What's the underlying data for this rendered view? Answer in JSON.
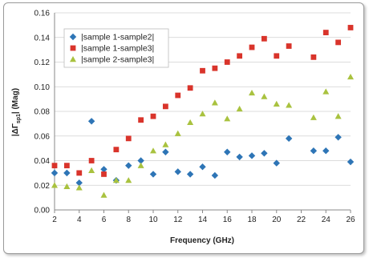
{
  "chart_data": {
    "type": "scatter",
    "xlabel": "Frequency (GHz)",
    "ylabel_parts": {
      "prefix": "|ΔΓ",
      "sub": "sp1",
      "suffix": "| (Mag)"
    },
    "xlim": [
      2,
      26
    ],
    "ylim": [
      0,
      0.16
    ],
    "x_ticks": [
      2,
      4,
      6,
      8,
      10,
      12,
      14,
      16,
      18,
      20,
      22,
      24,
      26
    ],
    "y_ticks": [
      "0.00",
      "0.02",
      "0.04",
      "0.06",
      "0.08",
      "0.10",
      "0.12",
      "0.14",
      "0.16"
    ],
    "grid": "horizontal",
    "legend_position": "top-left",
    "series": [
      {
        "name": "|sample 1-sample2|",
        "marker": "diamond",
        "color": "#2e75b6",
        "points": [
          [
            2,
            0.03
          ],
          [
            3,
            0.03
          ],
          [
            4,
            0.022
          ],
          [
            5,
            0.072
          ],
          [
            6,
            0.033
          ],
          [
            7,
            0.024
          ],
          [
            8,
            0.036
          ],
          [
            9,
            0.04
          ],
          [
            10,
            0.029
          ],
          [
            11,
            0.047
          ],
          [
            12,
            0.031
          ],
          [
            13,
            0.029
          ],
          [
            14,
            0.035
          ],
          [
            15,
            0.028
          ],
          [
            16,
            0.047
          ],
          [
            17,
            0.043
          ],
          [
            18,
            0.044
          ],
          [
            19,
            0.046
          ],
          [
            20,
            0.038
          ],
          [
            21,
            0.058
          ],
          [
            23,
            0.048
          ],
          [
            24,
            0.048
          ],
          [
            25,
            0.059
          ],
          [
            26,
            0.039
          ]
        ]
      },
      {
        "name": "|sample 1-sample3|",
        "marker": "square",
        "color": "#d9342b",
        "points": [
          [
            2,
            0.036
          ],
          [
            3,
            0.036
          ],
          [
            4,
            0.03
          ],
          [
            5,
            0.04
          ],
          [
            6,
            0.029
          ],
          [
            7,
            0.049
          ],
          [
            8,
            0.058
          ],
          [
            9,
            0.073
          ],
          [
            10,
            0.076
          ],
          [
            11,
            0.084
          ],
          [
            12,
            0.093
          ],
          [
            13,
            0.099
          ],
          [
            14,
            0.113
          ],
          [
            15,
            0.115
          ],
          [
            16,
            0.12
          ],
          [
            17,
            0.125
          ],
          [
            18,
            0.132
          ],
          [
            19,
            0.139
          ],
          [
            20,
            0.125
          ],
          [
            21,
            0.133
          ],
          [
            23,
            0.124
          ],
          [
            24,
            0.144
          ],
          [
            25,
            0.136
          ],
          [
            26,
            0.148
          ]
        ]
      },
      {
        "name": "|sample 2-sample3|",
        "marker": "triangle",
        "color": "#a9c23f",
        "points": [
          [
            2,
            0.02
          ],
          [
            3,
            0.019
          ],
          [
            4,
            0.018
          ],
          [
            5,
            0.032
          ],
          [
            6,
            0.012
          ],
          [
            7,
            0.024
          ],
          [
            8,
            0.024
          ],
          [
            9,
            0.036
          ],
          [
            10,
            0.048
          ],
          [
            11,
            0.053
          ],
          [
            12,
            0.062
          ],
          [
            13,
            0.071
          ],
          [
            14,
            0.078
          ],
          [
            15,
            0.087
          ],
          [
            16,
            0.074
          ],
          [
            17,
            0.082
          ],
          [
            18,
            0.095
          ],
          [
            19,
            0.092
          ],
          [
            20,
            0.086
          ],
          [
            21,
            0.085
          ],
          [
            23,
            0.075
          ],
          [
            24,
            0.096
          ],
          [
            25,
            0.076
          ],
          [
            26,
            0.108
          ]
        ]
      }
    ]
  }
}
